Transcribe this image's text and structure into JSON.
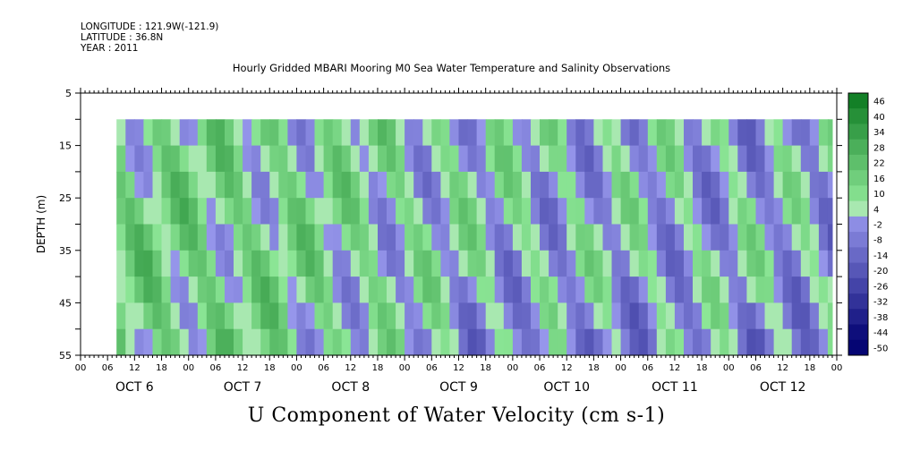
{
  "header": {
    "longitude": "LONGITUDE : 121.9W(-121.9)",
    "latitude": "LATITUDE : 36.8N",
    "year": "YEAR : 2011"
  },
  "chart_data": {
    "type": "heatmap",
    "title": "Hourly Gridded MBARI Mooring M0 Sea Water Temperature and Salinity Observations",
    "xlabel": "U Component of Water Velocity (cm s-1)",
    "ylabel": "DEPTH (m)",
    "ylim": [
      55,
      5
    ],
    "y_ticks": [
      5,
      15,
      25,
      35,
      45,
      55
    ],
    "x_hour_ticks": [
      "00",
      "06",
      "12",
      "18",
      "00",
      "06",
      "12",
      "18",
      "00",
      "06",
      "12",
      "18",
      "00",
      "06",
      "12",
      "18",
      "00",
      "06",
      "12",
      "18",
      "00",
      "06",
      "12",
      "18",
      "00",
      "06",
      "12",
      "18",
      "00"
    ],
    "x_day_labels": [
      "OCT 6",
      "OCT 7",
      "OCT 8",
      "OCT 9",
      "OCT 10",
      "OCT 11",
      "OCT 12"
    ],
    "data_depth_range": [
      10,
      55
    ],
    "data_start_hour": 8,
    "colorbar": {
      "levels": [
        -50,
        -44,
        -38,
        -32,
        -26,
        -20,
        -14,
        -8,
        -2,
        4,
        10,
        16,
        22,
        28,
        34,
        40,
        46
      ],
      "labels": [
        "46",
        "40",
        "34",
        "28",
        "22",
        "16",
        "10",
        "4",
        "-2",
        "-8",
        "-14",
        "-20",
        "-26",
        "-32",
        "-38",
        "-44",
        "-50"
      ]
    },
    "grid": false,
    "legend": "colorbar-right",
    "colors": {
      "positive": "#22c84a",
      "negative": "#7878e6",
      "near_zero": "#a8e8b0"
    }
  }
}
